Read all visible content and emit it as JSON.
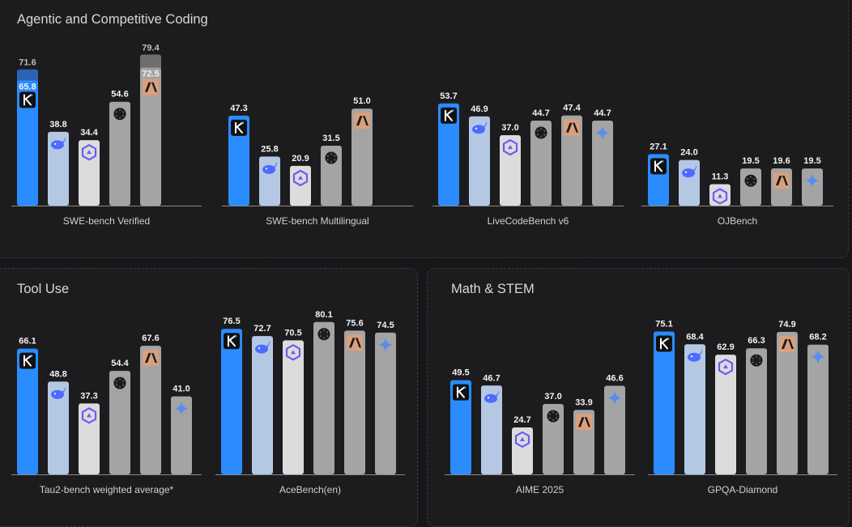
{
  "sections": {
    "coding": "Agentic and Competitive Coding",
    "tool": "Tool Use",
    "math": "Math & STEM"
  },
  "colors": {
    "kimi": "#2a8cff",
    "deepseek": "#b4c8e4",
    "qwen": "#dcdcdc",
    "openai": "#a4a4a4",
    "anthropic": "#a4a4a4",
    "gemini": "#a4a4a4",
    "panel_bg": "#1c1c1f",
    "page_bg": "#17171a"
  },
  "chart_data": [
    {
      "type": "bar",
      "title": "SWE-bench Verified",
      "section": "coding",
      "categories": [
        "kimi",
        "deepseek",
        "qwen",
        "openai",
        "anthropic"
      ],
      "values": [
        65.8,
        38.8,
        34.4,
        54.6,
        72.5
      ],
      "stack_top": [
        71.6,
        null,
        null,
        null,
        79.4
      ],
      "stack_labels": [
        "71.6",
        "",
        "",
        "",
        "79.4"
      ],
      "labels": [
        "65.8",
        "38.8",
        "34.4",
        "54.6",
        "72.5"
      ]
    },
    {
      "type": "bar",
      "title": "SWE-bench Multilingual",
      "section": "coding",
      "categories": [
        "kimi",
        "deepseek",
        "qwen",
        "openai",
        "anthropic"
      ],
      "values": [
        47.3,
        25.8,
        20.9,
        31.5,
        51.0
      ],
      "labels": [
        "47.3",
        "25.8",
        "20.9",
        "31.5",
        "51.0"
      ]
    },
    {
      "type": "bar",
      "title": "LiveCodeBench v6",
      "section": "coding",
      "categories": [
        "kimi",
        "deepseek",
        "qwen",
        "openai",
        "anthropic",
        "gemini"
      ],
      "values": [
        53.7,
        46.9,
        37.0,
        44.7,
        47.4,
        44.7
      ],
      "labels": [
        "53.7",
        "46.9",
        "37.0",
        "44.7",
        "47.4",
        "44.7"
      ]
    },
    {
      "type": "bar",
      "title": "OJBench",
      "section": "coding",
      "categories": [
        "kimi",
        "deepseek",
        "qwen",
        "openai",
        "anthropic",
        "gemini"
      ],
      "values": [
        27.1,
        24.0,
        11.3,
        19.5,
        19.6,
        19.5
      ],
      "labels": [
        "27.1",
        "24.0",
        "11.3",
        "19.5",
        "19.6",
        "19.5"
      ]
    },
    {
      "type": "bar",
      "title": "Tau2-bench weighted average*",
      "section": "tool",
      "categories": [
        "kimi",
        "deepseek",
        "qwen",
        "openai",
        "anthropic",
        "gemini"
      ],
      "values": [
        66.1,
        48.8,
        37.3,
        54.4,
        67.6,
        41.0
      ],
      "labels": [
        "66.1",
        "48.8",
        "37.3",
        "54.4",
        "67.6",
        "41.0"
      ]
    },
    {
      "type": "bar",
      "title": "AceBench(en)",
      "section": "tool",
      "categories": [
        "kimi",
        "deepseek",
        "qwen",
        "openai",
        "anthropic",
        "gemini"
      ],
      "values": [
        76.5,
        72.7,
        70.5,
        80.1,
        75.6,
        74.5
      ],
      "labels": [
        "76.5",
        "72.7",
        "70.5",
        "80.1",
        "75.6",
        "74.5"
      ]
    },
    {
      "type": "bar",
      "title": "AIME 2025",
      "section": "math",
      "categories": [
        "kimi",
        "deepseek",
        "qwen",
        "openai",
        "anthropic",
        "gemini"
      ],
      "values": [
        49.5,
        46.7,
        24.7,
        37.0,
        33.9,
        46.6
      ],
      "labels": [
        "49.5",
        "46.7",
        "24.7",
        "37.0",
        "33.9",
        "46.6"
      ]
    },
    {
      "type": "bar",
      "title": "GPQA-Diamond",
      "section": "math",
      "categories": [
        "kimi",
        "deepseek",
        "qwen",
        "openai",
        "anthropic",
        "gemini"
      ],
      "values": [
        75.1,
        68.4,
        62.9,
        66.3,
        74.9,
        68.2
      ],
      "labels": [
        "75.1",
        "68.4",
        "62.9",
        "66.3",
        "74.9",
        "68.2"
      ]
    }
  ]
}
